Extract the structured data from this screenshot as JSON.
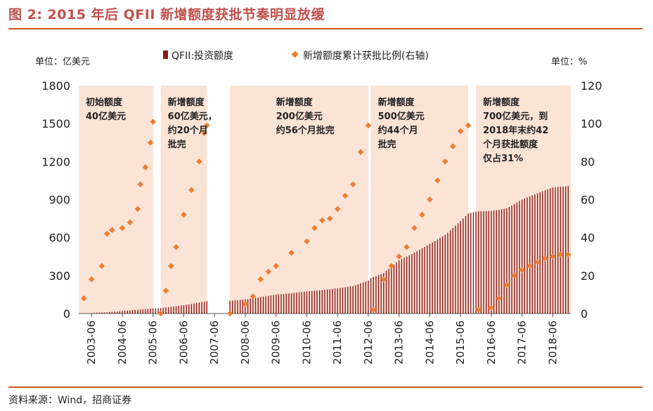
{
  "figure": {
    "title": "图 2:  2015 年后 QFII 新增额度获批节奏明显放缓",
    "source": "资料来源：Wind，招商证券"
  },
  "colors": {
    "bar": "#8b1a1a",
    "point": "#ed7d31",
    "band": "#fbe3d6",
    "title": "#c0504d",
    "rule": "#c65a11"
  },
  "chart_data": {
    "type": "bar+scatter",
    "left_unit_label": "单位：亿美元",
    "right_unit_label": "单位：%",
    "legend": {
      "bar_label": "QFII:投资额度",
      "point_label": "新增额度累计获批比例(右轴)",
      "position": "top"
    },
    "y_left": {
      "min": 0,
      "max": 1800,
      "ticks": [
        "0",
        "300",
        "600",
        "900",
        "1200",
        "1500",
        "1800"
      ]
    },
    "y_right": {
      "min": 0,
      "max": 120,
      "ticks": [
        "0",
        "20",
        "40",
        "60",
        "80",
        "100",
        "120"
      ]
    },
    "x_ticks": [
      "2003-06",
      "2004-06",
      "2005-06",
      "2006-06",
      "2007-06",
      "2008-06",
      "2009-06",
      "2010-06",
      "2011-06",
      "2012-06",
      "2013-06",
      "2014-06",
      "2015-06",
      "2016-06",
      "2017-06",
      "2018-06"
    ],
    "x_range": [
      "2003-01",
      "2019-01"
    ],
    "phases": [
      {
        "start": "2003-01",
        "end": "2005-06",
        "annotation": [
          "初始额度",
          "40亿美元"
        ]
      },
      {
        "start": "2005-09",
        "end": "2007-03",
        "annotation": [
          "新增额度",
          "60亿美元，",
          "约20个月",
          "批完"
        ]
      },
      {
        "start": "2007-12",
        "end": "2012-06",
        "annotation": [
          "新增额度",
          "200亿美元",
          "约56个月批完"
        ]
      },
      {
        "start": "2012-07",
        "end": "2015-09",
        "annotation": [
          "新增额度",
          "500亿美元",
          "约44个月",
          "批完"
        ]
      },
      {
        "start": "2015-12",
        "end": "2019-01",
        "annotation": [
          "新增额度",
          "700亿美元，到",
          "2018年末约42",
          "个月获批额度",
          "仅占31%"
        ]
      }
    ],
    "quota_series": {
      "name": "QFII:投资额度",
      "unit": "亿美元",
      "points": [
        [
          "2003-07",
          5
        ],
        [
          "2003-12",
          10
        ],
        [
          "2004-06",
          20
        ],
        [
          "2004-12",
          30
        ],
        [
          "2005-06",
          40
        ],
        [
          "2005-09",
          42
        ],
        [
          "2006-03",
          58
        ],
        [
          "2006-09",
          75
        ],
        [
          "2007-03",
          99
        ],
        [
          "2007-12",
          100
        ],
        [
          "2008-06",
          112
        ],
        [
          "2008-12",
          130
        ],
        [
          "2009-06",
          150
        ],
        [
          "2009-12",
          160
        ],
        [
          "2010-06",
          175
        ],
        [
          "2010-12",
          185
        ],
        [
          "2011-06",
          200
        ],
        [
          "2011-12",
          216
        ],
        [
          "2012-06",
          260
        ],
        [
          "2012-07",
          280
        ],
        [
          "2012-12",
          320
        ],
        [
          "2013-06",
          420
        ],
        [
          "2013-12",
          480
        ],
        [
          "2014-06",
          550
        ],
        [
          "2014-12",
          620
        ],
        [
          "2015-06",
          730
        ],
        [
          "2015-09",
          790
        ],
        [
          "2015-12",
          805
        ],
        [
          "2016-06",
          810
        ],
        [
          "2016-12",
          830
        ],
        [
          "2017-06",
          900
        ],
        [
          "2017-12",
          950
        ],
        [
          "2018-06",
          995
        ],
        [
          "2018-12",
          1005
        ]
      ]
    },
    "ratio_series": {
      "name": "新增额度累计获批比例(右轴)",
      "unit": "%",
      "points": [
        [
          "2003-03",
          8
        ],
        [
          "2003-06",
          18
        ],
        [
          "2003-10",
          25
        ],
        [
          "2003-12",
          42
        ],
        [
          "2004-02",
          44
        ],
        [
          "2004-06",
          45
        ],
        [
          "2004-09",
          48
        ],
        [
          "2004-12",
          55
        ],
        [
          "2005-01",
          68
        ],
        [
          "2005-03",
          77
        ],
        [
          "2005-05",
          90
        ],
        [
          "2005-06",
          101
        ],
        [
          "2005-09",
          0
        ],
        [
          "2005-11",
          12
        ],
        [
          "2006-01",
          25
        ],
        [
          "2006-03",
          35
        ],
        [
          "2006-06",
          52
        ],
        [
          "2006-09",
          65
        ],
        [
          "2006-12",
          80
        ],
        [
          "2007-02",
          95
        ],
        [
          "2007-03",
          99
        ],
        [
          "2007-12",
          0
        ],
        [
          "2008-06",
          5
        ],
        [
          "2008-09",
          9
        ],
        [
          "2008-12",
          18
        ],
        [
          "2009-03",
          22
        ],
        [
          "2009-06",
          25
        ],
        [
          "2009-12",
          32
        ],
        [
          "2010-06",
          38
        ],
        [
          "2010-09",
          45
        ],
        [
          "2010-12",
          49
        ],
        [
          "2011-03",
          50
        ],
        [
          "2011-06",
          55
        ],
        [
          "2011-09",
          62
        ],
        [
          "2011-12",
          68
        ],
        [
          "2012-03",
          85
        ],
        [
          "2012-06",
          99
        ],
        [
          "2012-08",
          2
        ],
        [
          "2012-12",
          18
        ],
        [
          "2013-03",
          25
        ],
        [
          "2013-06",
          30
        ],
        [
          "2013-09",
          35
        ],
        [
          "2013-12",
          45
        ],
        [
          "2014-03",
          52
        ],
        [
          "2014-06",
          60
        ],
        [
          "2014-09",
          70
        ],
        [
          "2014-12",
          80
        ],
        [
          "2015-03",
          88
        ],
        [
          "2015-06",
          96
        ],
        [
          "2015-09",
          99
        ],
        [
          "2016-01",
          2
        ],
        [
          "2016-06",
          3
        ],
        [
          "2016-09",
          8
        ],
        [
          "2016-12",
          15
        ],
        [
          "2017-03",
          20
        ],
        [
          "2017-06",
          23
        ],
        [
          "2017-09",
          25
        ],
        [
          "2017-12",
          27
        ],
        [
          "2018-03",
          29
        ],
        [
          "2018-06",
          30
        ],
        [
          "2018-09",
          31
        ],
        [
          "2018-12",
          31
        ]
      ]
    }
  }
}
